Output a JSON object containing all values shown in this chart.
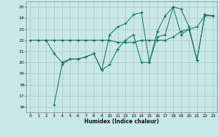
{
  "xlabel": "Humidex (Indice chaleur)",
  "bg_color": "#c8e8e8",
  "line_color": "#1a6b60",
  "xlim": [
    -0.5,
    23.5
  ],
  "ylim": [
    15.5,
    25.5
  ],
  "yticks": [
    16,
    17,
    18,
    19,
    20,
    21,
    22,
    23,
    24,
    25
  ],
  "xticks": [
    0,
    1,
    2,
    3,
    4,
    5,
    6,
    7,
    8,
    9,
    10,
    11,
    12,
    13,
    14,
    15,
    16,
    17,
    18,
    19,
    20,
    21,
    22,
    23
  ],
  "series1": {
    "x": [
      0,
      1,
      2,
      3,
      4,
      5,
      6,
      7,
      8,
      9,
      10,
      11,
      12,
      13,
      14,
      15,
      16,
      17,
      18,
      19,
      20,
      21,
      22,
      23
    ],
    "y": [
      22,
      22,
      22,
      22,
      22,
      22,
      22,
      22,
      22,
      22,
      22,
      21.8,
      21.8,
      21.8,
      22,
      22,
      22,
      22,
      22.3,
      22.8,
      23.0,
      23.2,
      24.2,
      24.2
    ]
  },
  "series2": {
    "x": [
      2,
      3,
      4,
      5,
      6,
      7,
      8,
      9,
      10,
      11,
      12,
      13,
      14,
      15,
      16,
      17,
      18,
      19,
      20,
      21,
      22,
      23
    ],
    "y": [
      22,
      20.8,
      20.0,
      20.3,
      20.3,
      20.5,
      20.8,
      19.3,
      22.5,
      23.2,
      23.5,
      24.3,
      24.5,
      20.0,
      22.8,
      24.2,
      25.0,
      22.5,
      23.0,
      20.2,
      24.3,
      24.2
    ]
  },
  "series3": {
    "x": [
      3,
      4,
      5,
      6,
      7,
      8,
      9,
      10,
      11,
      12,
      13,
      14,
      15,
      16,
      17,
      18,
      19,
      20,
      21,
      22,
      23
    ],
    "y": [
      16.2,
      19.8,
      20.3,
      20.3,
      20.5,
      20.8,
      19.3,
      19.8,
      21.2,
      22.0,
      22.5,
      20.0,
      20.0,
      22.3,
      22.5,
      25.0,
      24.8,
      23.2,
      20.2,
      24.3,
      24.2
    ]
  }
}
